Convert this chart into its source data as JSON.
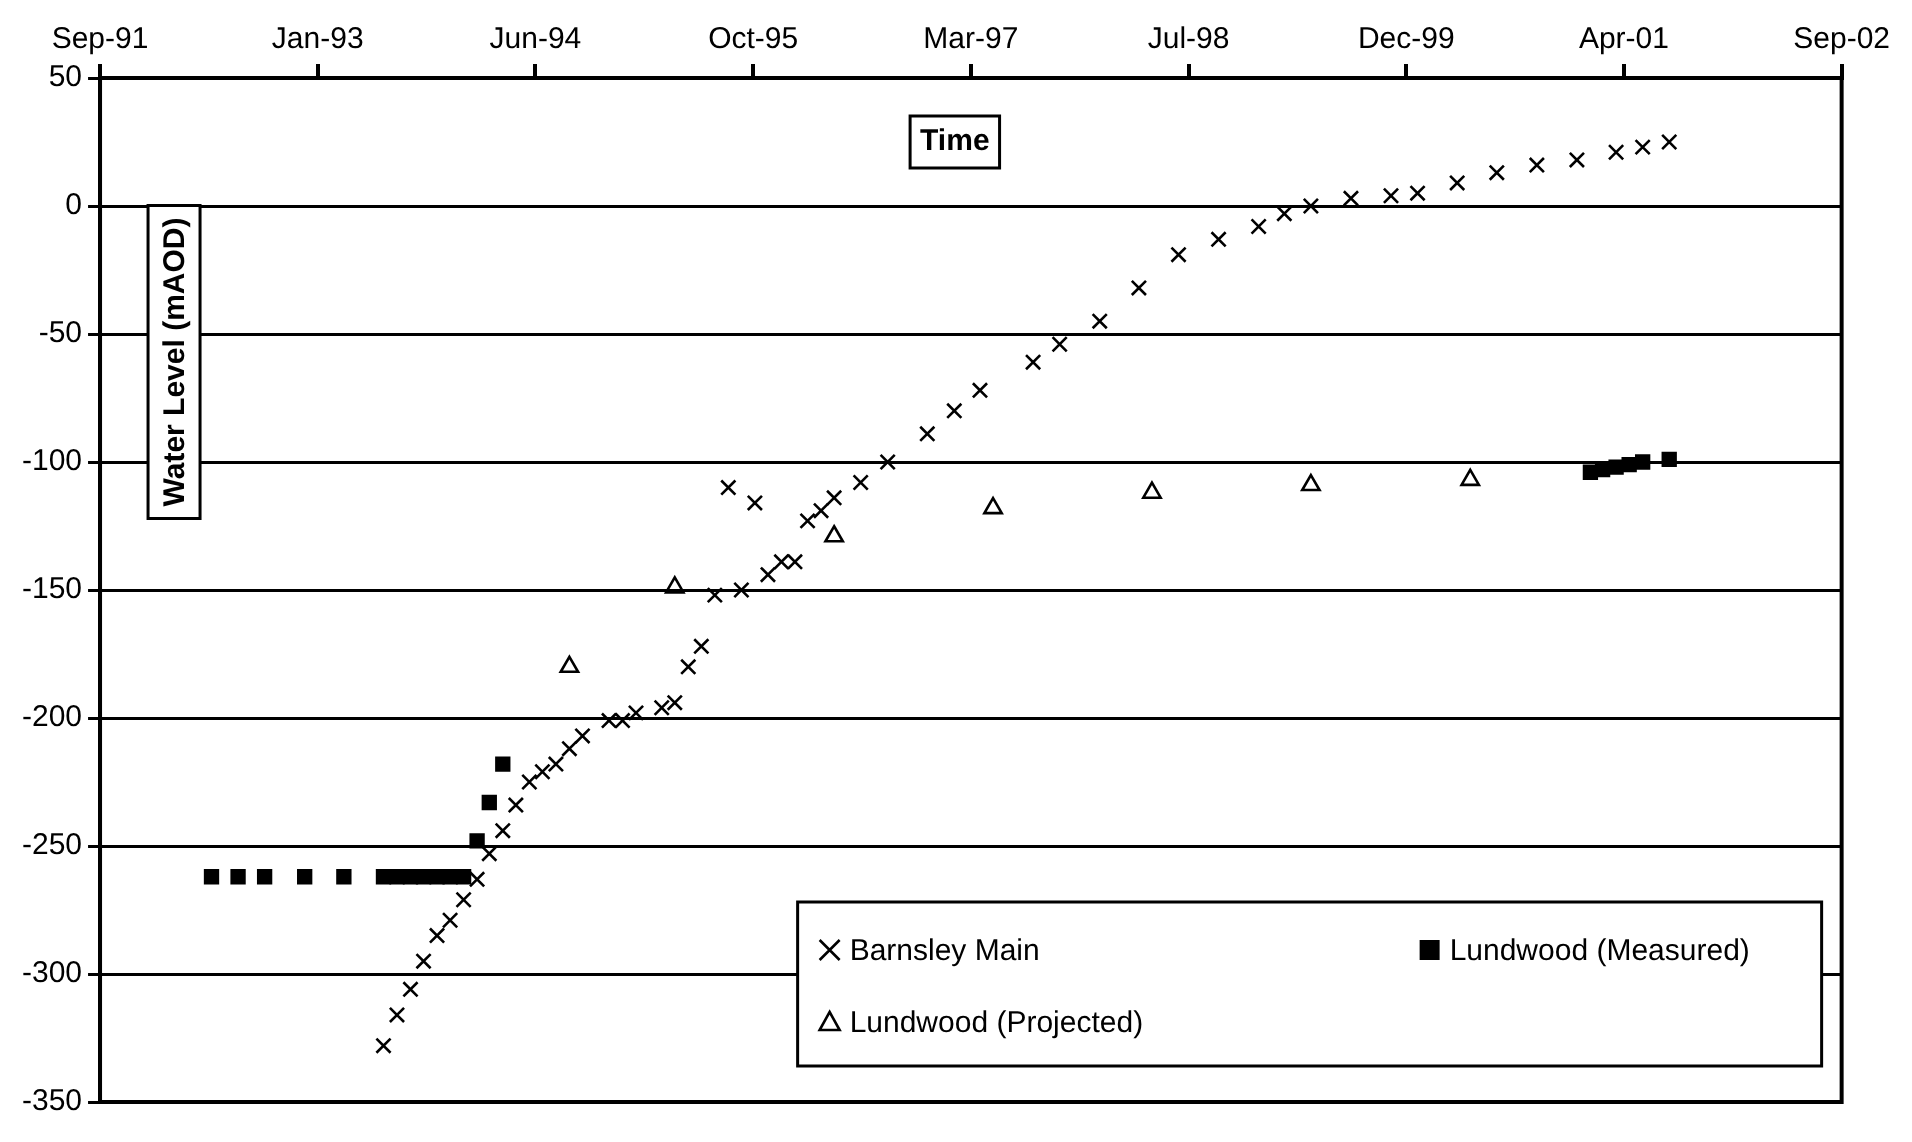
{
  "chart_data": {
    "type": "scatter",
    "xlabel": "Time",
    "ylabel": "Water Level (mAOD)",
    "xlim": [
      "1991-09-19",
      "2002-09-01"
    ],
    "xticks": [
      {
        "value": "1991-09-19",
        "label": "Sep-91"
      },
      {
        "value": "1993-01-31",
        "label": "Jan-93"
      },
      {
        "value": "1994-06-15",
        "label": "Jun-94"
      },
      {
        "value": "1995-10-28",
        "label": "Oct-95"
      },
      {
        "value": "1997-03-11",
        "label": "Mar-97"
      },
      {
        "value": "1998-07-24",
        "label": "Jul-98"
      },
      {
        "value": "1999-12-06",
        "label": "Dec-99"
      },
      {
        "value": "2001-04-19",
        "label": "Apr-01"
      },
      {
        "value": "2002-09-01",
        "label": "Sep-02"
      }
    ],
    "ylim": [
      -350,
      50
    ],
    "yticks": [
      -350,
      -300,
      -250,
      -200,
      -150,
      -100,
      -50,
      0,
      50
    ],
    "grid": "y",
    "legend": "bottom right",
    "series": [
      {
        "name": "Barnsley Main",
        "color": "#000000",
        "marker": "cross",
        "x": [
          "1993-07",
          "1993-08",
          "1993-09",
          "1993-10",
          "1993-11",
          "1993-12",
          "1994-01",
          "1994-02",
          "1994-03",
          "1994-04",
          "1994-05",
          "1994-06",
          "1994-07",
          "1994-08",
          "1994-09",
          "1994-10",
          "1994-12",
          "1995-01",
          "1995-02",
          "1995-04",
          "1995-05",
          "1995-06",
          "1995-07",
          "1995-08",
          "1995-09",
          "1995-10",
          "1995-11",
          "1995-12",
          "1996-01",
          "1996-02",
          "1996-03",
          "1996-04",
          "1996-05",
          "1996-07",
          "1996-09",
          "1996-12",
          "1997-02",
          "1997-04",
          "1997-08",
          "1997-10",
          "1998-01",
          "1998-04",
          "1998-07",
          "1998-10",
          "1999-01",
          "1999-03",
          "1999-05",
          "1999-08",
          "1999-11",
          "2000-01",
          "2000-04",
          "2000-07",
          "2000-10",
          "2001-01",
          "2001-04",
          "2001-06",
          "2001-08"
        ],
        "values": [
          -328,
          -316,
          -306,
          -295,
          -285,
          -279,
          -271,
          -263,
          -253,
          -244,
          -234,
          -225,
          -221,
          -218,
          -212,
          -207,
          -201,
          -201,
          -198,
          -196,
          -194,
          -180,
          -172,
          -152,
          -110,
          -150,
          -116,
          -144,
          -139,
          -139,
          -123,
          -119,
          -114,
          -108,
          -100,
          -89,
          -80,
          -72,
          -61,
          -54,
          -45,
          -32,
          -19,
          -13,
          -8,
          -3,
          0,
          3,
          4,
          5,
          9,
          13,
          16,
          18,
          21,
          23,
          25
        ]
      },
      {
        "name": "Lundwood (Measured)",
        "color": "#000000",
        "marker": "square",
        "x": [
          "1992-06",
          "1992-08",
          "1992-10",
          "1993-01",
          "1993-04",
          "1993-07",
          "1993-08",
          "1993-09",
          "1993-10",
          "1993-11",
          "1993-12",
          "1994-01",
          "1994-02",
          "1994-03",
          "1994-04",
          "2001-02",
          "2001-03",
          "2001-04",
          "2001-05",
          "2001-06",
          "2001-08"
        ],
        "values": [
          -262,
          -262,
          -262,
          -262,
          -262,
          -262,
          -262,
          -262,
          -262,
          -262,
          -262,
          -262,
          -248,
          -233,
          -218,
          -104,
          -103,
          -102,
          -101,
          -100,
          -99
        ]
      },
      {
        "name": "Lundwood (Projected)",
        "color": "#000000",
        "marker": "triangle",
        "x": [
          "1994-09",
          "1995-05",
          "1996-05",
          "1997-05",
          "1998-05",
          "1999-05",
          "2000-05"
        ],
        "values": [
          -180,
          -149,
          -129,
          -118,
          -112,
          -109,
          -107
        ]
      }
    ]
  }
}
